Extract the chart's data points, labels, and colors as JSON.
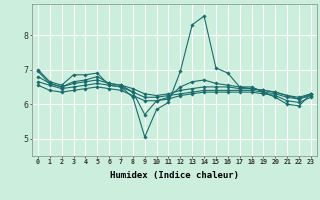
{
  "xlabel": "Humidex (Indice chaleur)",
  "xlim": [
    -0.5,
    23.5
  ],
  "ylim": [
    4.5,
    8.9
  ],
  "xticks": [
    0,
    1,
    2,
    3,
    4,
    5,
    6,
    7,
    8,
    9,
    10,
    11,
    12,
    13,
    14,
    15,
    16,
    17,
    18,
    19,
    20,
    21,
    22,
    23
  ],
  "yticks": [
    5,
    6,
    7,
    8
  ],
  "background_color": "#cceedd",
  "grid_color": "#ffffff",
  "line_color": "#1a6b6b",
  "lines": [
    [
      7.0,
      6.65,
      6.55,
      6.85,
      6.85,
      6.9,
      6.55,
      6.5,
      6.2,
      5.05,
      5.85,
      6.05,
      6.95,
      8.3,
      8.55,
      7.05,
      6.9,
      6.5,
      6.5,
      6.35,
      6.2,
      6.0,
      5.95,
      6.3
    ],
    [
      6.95,
      6.6,
      6.5,
      6.65,
      6.7,
      6.8,
      6.6,
      6.55,
      6.35,
      5.7,
      6.1,
      6.2,
      6.5,
      6.65,
      6.7,
      6.6,
      6.55,
      6.5,
      6.45,
      6.4,
      6.35,
      6.25,
      6.15,
      6.3
    ],
    [
      6.8,
      6.6,
      6.5,
      6.6,
      6.65,
      6.7,
      6.6,
      6.55,
      6.45,
      6.3,
      6.25,
      6.3,
      6.4,
      6.45,
      6.5,
      6.5,
      6.5,
      6.45,
      6.45,
      6.4,
      6.35,
      6.25,
      6.2,
      6.3
    ],
    [
      6.65,
      6.55,
      6.45,
      6.5,
      6.55,
      6.6,
      6.55,
      6.5,
      6.35,
      6.2,
      6.2,
      6.25,
      6.3,
      6.35,
      6.4,
      6.4,
      6.4,
      6.4,
      6.4,
      6.35,
      6.3,
      6.2,
      6.15,
      6.25
    ],
    [
      6.55,
      6.4,
      6.35,
      6.4,
      6.45,
      6.5,
      6.45,
      6.4,
      6.25,
      6.1,
      6.1,
      6.15,
      6.25,
      6.3,
      6.35,
      6.35,
      6.35,
      6.35,
      6.35,
      6.3,
      6.25,
      6.1,
      6.05,
      6.2
    ]
  ]
}
